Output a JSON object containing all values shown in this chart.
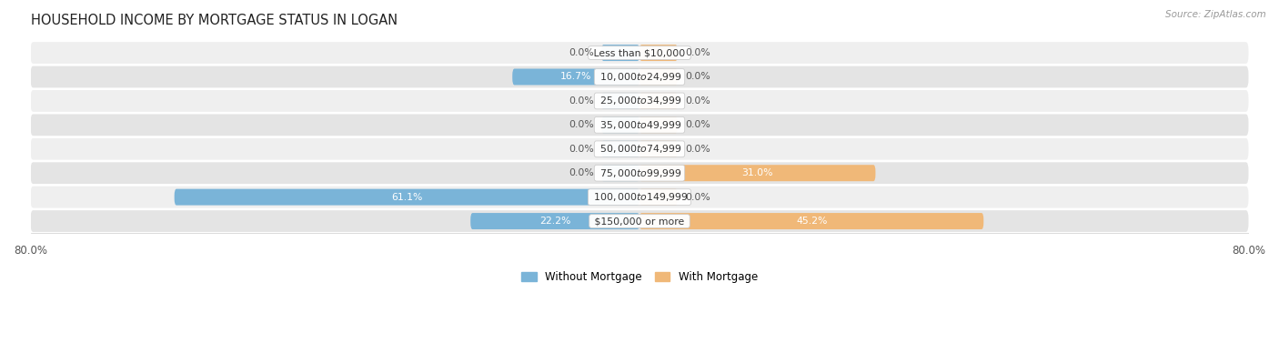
{
  "title": "HOUSEHOLD INCOME BY MORTGAGE STATUS IN LOGAN",
  "source": "Source: ZipAtlas.com",
  "categories": [
    "Less than $10,000",
    "$10,000 to $24,999",
    "$25,000 to $34,999",
    "$35,000 to $49,999",
    "$50,000 to $74,999",
    "$75,000 to $99,999",
    "$100,000 to $149,999",
    "$150,000 or more"
  ],
  "without_mortgage": [
    0.0,
    16.7,
    0.0,
    0.0,
    0.0,
    0.0,
    61.1,
    22.2
  ],
  "with_mortgage": [
    0.0,
    0.0,
    0.0,
    0.0,
    0.0,
    31.0,
    0.0,
    45.2
  ],
  "color_without": "#7ab4d8",
  "color_with": "#f0b878",
  "bg_row_light": "#efefef",
  "bg_row_dark": "#e4e4e4",
  "xlim": 80.0,
  "min_bar_display": 5.0,
  "legend_labels": [
    "Without Mortgage",
    "With Mortgage"
  ]
}
